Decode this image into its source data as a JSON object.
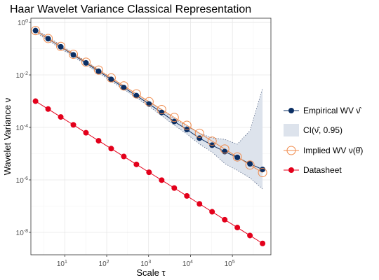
{
  "chart_data": {
    "type": "line",
    "title": "Haar Wavelet Variance Classical Representation",
    "xlabel": "Scale τ",
    "ylabel": "Wavelet Variance ν",
    "x_scale": "log10",
    "y_scale": "log10",
    "xlim": [
      1.55,
      830000
    ],
    "ylim": [
      1.4e-09,
      1.45
    ],
    "x_ticks": [
      {
        "value": 10,
        "base": "10",
        "exp": "1"
      },
      {
        "value": 100,
        "base": "10",
        "exp": "2"
      },
      {
        "value": 1000,
        "base": "10",
        "exp": "3"
      },
      {
        "value": 10000,
        "base": "10",
        "exp": "4"
      },
      {
        "value": 100000,
        "base": "10",
        "exp": "5"
      }
    ],
    "y_ticks": [
      {
        "value": 1,
        "base": "10",
        "exp": "0"
      },
      {
        "value": 0.01,
        "base": "10",
        "exp": "-2"
      },
      {
        "value": 0.0001,
        "base": "10",
        "exp": "-4"
      },
      {
        "value": 1e-06,
        "base": "10",
        "exp": "-6"
      },
      {
        "value": 1e-08,
        "base": "10",
        "exp": "-8"
      }
    ],
    "grid": true,
    "legend_position": "right",
    "x": [
      2,
      4,
      8,
      16,
      32,
      64,
      128,
      256,
      512,
      1024,
      2048,
      4096,
      8192,
      16384,
      32768,
      65536,
      131072,
      262144,
      524288
    ],
    "series": [
      {
        "key": "ci",
        "name": "CI(ν̂, 0.95)",
        "kind": "ribbon",
        "color": "#dde3ec",
        "lower": [
          0.42,
          0.205,
          0.101,
          0.05,
          0.0245,
          0.0118,
          0.0058,
          0.0028,
          0.00135,
          0.00064,
          0.00028,
          0.000122,
          5.6e-05,
          2.3e-05,
          1.15e-05,
          4.2e-06,
          2.3e-06,
          1.2e-06,
          4.5e-07
        ],
        "upper": [
          0.56,
          0.275,
          0.136,
          0.067,
          0.033,
          0.016,
          0.0079,
          0.0039,
          0.0019,
          0.00094,
          0.00046,
          0.000215,
          0.00011,
          6e-05,
          4e-05,
          3.5e-05,
          2.3e-05,
          7.5e-05,
          0.0031
        ]
      },
      {
        "key": "empirical",
        "name": "Empirical WV  ν̂",
        "kind": "line+points",
        "color": "#0b2f64",
        "values": [
          0.49,
          0.24,
          0.118,
          0.058,
          0.0286,
          0.0138,
          0.0068,
          0.0033,
          0.00162,
          0.00078,
          0.00037,
          0.000168,
          8.3e-05,
          3.9e-05,
          2.1e-05,
          1.2e-05,
          7.2e-06,
          4.1e-06,
          2.5e-06
        ]
      },
      {
        "key": "implied",
        "name": "Implied WV  ν(θ̂)",
        "kind": "line+open-points",
        "color": "#f08a4b",
        "values": [
          0.49,
          0.245,
          0.1225,
          0.061,
          0.0306,
          0.0153,
          0.0077,
          0.0038,
          0.0019,
          0.00096,
          0.00048,
          0.00024,
          0.00012,
          6e-05,
          3e-05,
          1.5e-05,
          7.5e-06,
          3.7e-06,
          1.9e-06
        ]
      },
      {
        "key": "datasheet",
        "name": "Datasheet",
        "kind": "line+points",
        "color": "#e3001b",
        "values": [
          0.001,
          0.0005,
          0.00025,
          0.000125,
          6.25e-05,
          3.1e-05,
          1.56e-05,
          7.8e-06,
          3.9e-06,
          1.95e-06,
          9.8e-07,
          4.9e-07,
          2.45e-07,
          1.22e-07,
          6.1e-08,
          3.05e-08,
          1.53e-08,
          7.6e-09,
          3.8e-09
        ]
      }
    ],
    "legend": [
      {
        "key": "empirical",
        "label": "Empirical WV  ",
        "symbol": "ν̂"
      },
      {
        "key": "ci",
        "label": "CI(ν̂, 0.95)",
        "symbol": ""
      },
      {
        "key": "implied",
        "label": "Implied WV  ",
        "symbol": "ν(θ̂)"
      },
      {
        "key": "datasheet",
        "label": "Datasheet",
        "symbol": ""
      }
    ]
  }
}
